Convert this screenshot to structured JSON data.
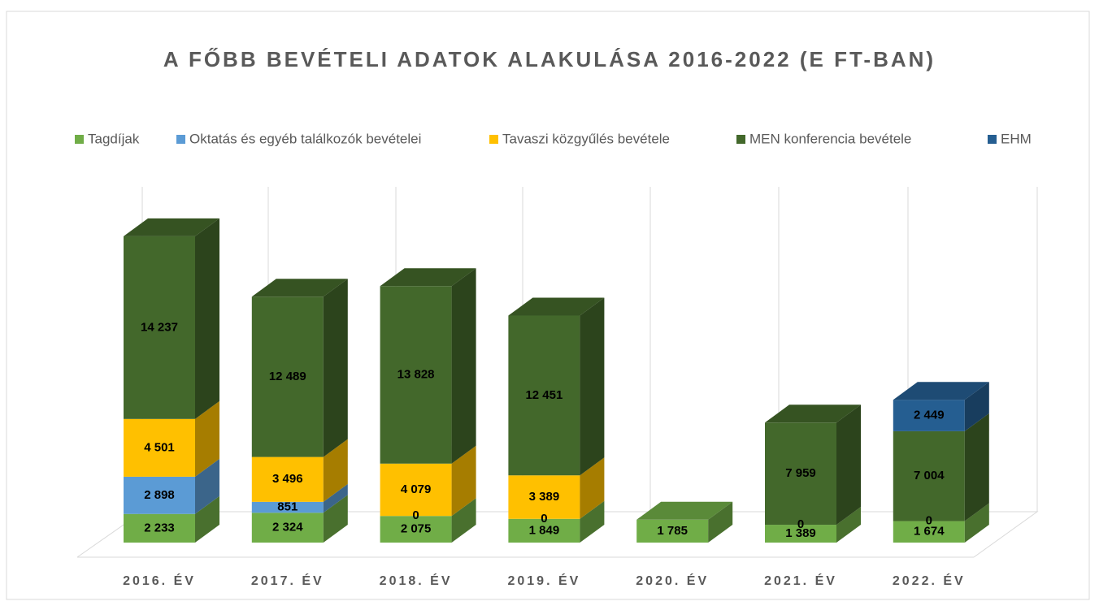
{
  "chart_data": {
    "type": "bar3d_stacked",
    "title": "A FŐBB BEVÉTELI ADATOK ALAKULÁSA 2016-2022 (E FT-BAN)",
    "categories": [
      "2016. ÉV",
      "2017. ÉV",
      "2018. ÉV",
      "2019. ÉV",
      "2020. ÉV",
      "2021. ÉV",
      "2022. ÉV"
    ],
    "series": [
      {
        "name": "Tagdíjak",
        "color": "#70ad47",
        "values": [
          2233,
          2324,
          2075,
          1849,
          1785,
          1389,
          1674
        ],
        "value_labels": [
          "2 233",
          "2 324",
          "2 075",
          "1 849",
          "1 785",
          "1 389",
          "1 674"
        ]
      },
      {
        "name": "Oktatás és egyéb találkozók bevételei",
        "color": "#5b9bd5",
        "values": [
          2898,
          851,
          0,
          0,
          null,
          null,
          null
        ],
        "value_labels": [
          "2 898",
          "851",
          "0",
          "0",
          null,
          null,
          null
        ]
      },
      {
        "name": "Tavaszi közgyűlés bevétele",
        "color": "#ffc000",
        "values": [
          4501,
          3496,
          4079,
          3389,
          null,
          0,
          0
        ],
        "value_labels": [
          "4 501",
          "3 496",
          "4 079",
          "3 389",
          null,
          "0",
          "0"
        ]
      },
      {
        "name": "MEN konferencia bevétele",
        "color": "#43682b",
        "values": [
          14237,
          12489,
          13828,
          12451,
          null,
          7959,
          7004
        ],
        "value_labels": [
          "14 237",
          "12 489",
          "13 828",
          "12 451",
          null,
          "7 959",
          "7 004"
        ]
      },
      {
        "name": "EHM",
        "color": "#255e91",
        "values": [
          null,
          null,
          null,
          null,
          null,
          null,
          2449
        ],
        "value_labels": [
          null,
          null,
          null,
          null,
          null,
          null,
          "2 449"
        ]
      }
    ]
  }
}
